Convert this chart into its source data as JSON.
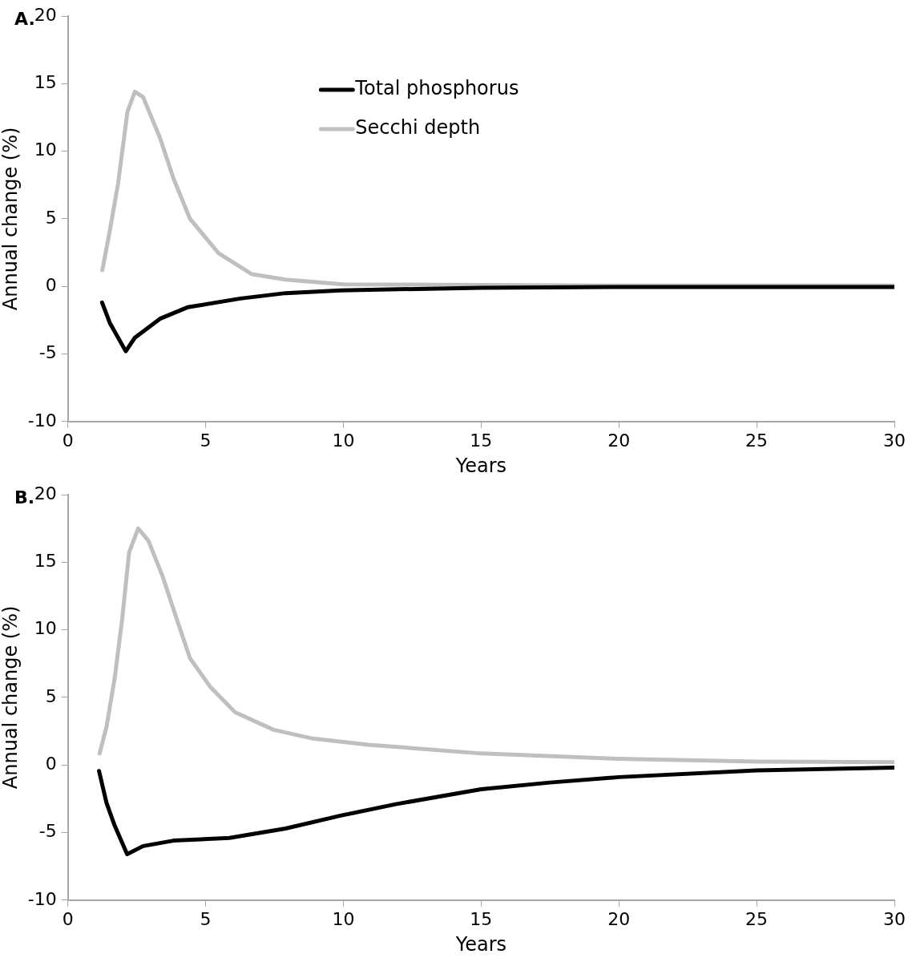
{
  "chart_data": [
    {
      "type": "line",
      "title": "A.",
      "xlabel": "Years",
      "ylabel": "Annual change (%)",
      "legend": "top",
      "xlim": [
        0,
        30
      ],
      "ylim": [
        -10,
        20
      ],
      "xticks": [
        0,
        5,
        10,
        15,
        20,
        25,
        30
      ],
      "yticks": [
        -10,
        -5,
        0,
        5,
        10,
        15,
        20
      ],
      "series": [
        {
          "name": "Total phosphorus",
          "color": "#000000",
          "x": [
            1.24,
            1.52,
            2.1,
            2.43,
            3.34,
            4.34,
            6.26,
            7.9,
            9.9,
            15,
            20,
            25,
            30
          ],
          "values": [
            -1.2,
            -2.7,
            -4.8,
            -3.8,
            -2.4,
            -1.55,
            -0.9,
            -0.5,
            -0.3,
            -0.1,
            -0.05,
            -0.05,
            -0.05
          ]
        },
        {
          "name": "Secchi depth",
          "color": "#bfbfbf",
          "x": [
            1.25,
            1.52,
            1.82,
            2.16,
            2.43,
            2.73,
            3.34,
            3.83,
            4.43,
            5.47,
            6.68,
            7.9,
            10,
            15,
            20,
            25,
            30
          ],
          "values": [
            1.2,
            4.1,
            7.6,
            12.9,
            14.4,
            14.0,
            11.0,
            8.0,
            5.0,
            2.45,
            0.9,
            0.5,
            0.15,
            0.1,
            0.05,
            0.05,
            0.05
          ]
        }
      ]
    },
    {
      "type": "line",
      "title": "B.",
      "xlabel": "Years",
      "ylabel": "Annual change (%)",
      "xlim": [
        0,
        30
      ],
      "ylim": [
        -10,
        20
      ],
      "xticks": [
        0,
        5,
        10,
        15,
        20,
        25,
        30
      ],
      "yticks": [
        -10,
        -5,
        0,
        5,
        10,
        15,
        20
      ],
      "series": [
        {
          "color": "#000000",
          "x": [
            1.13,
            1.4,
            1.7,
            2.15,
            2.73,
            3.83,
            5.86,
            7.9,
            9.9,
            11.9,
            15,
            17.5,
            20,
            25,
            30
          ],
          "values": [
            -0.45,
            -2.8,
            -4.5,
            -6.6,
            -6.0,
            -5.6,
            -5.4,
            -4.7,
            -3.75,
            -2.9,
            -1.8,
            -1.3,
            -0.9,
            -0.4,
            -0.2
          ]
        },
        {
          "color": "#bfbfbf",
          "x": [
            1.15,
            1.4,
            1.7,
            1.97,
            2.22,
            2.55,
            2.92,
            3.43,
            3.95,
            4.43,
            5.16,
            6.07,
            7.47,
            8.9,
            10.9,
            15,
            20,
            25,
            30
          ],
          "values": [
            0.85,
            2.8,
            6.45,
            10.8,
            15.7,
            17.5,
            16.6,
            14.0,
            10.8,
            7.9,
            5.8,
            3.9,
            2.6,
            1.95,
            1.5,
            0.85,
            0.45,
            0.25,
            0.2
          ]
        }
      ]
    }
  ]
}
